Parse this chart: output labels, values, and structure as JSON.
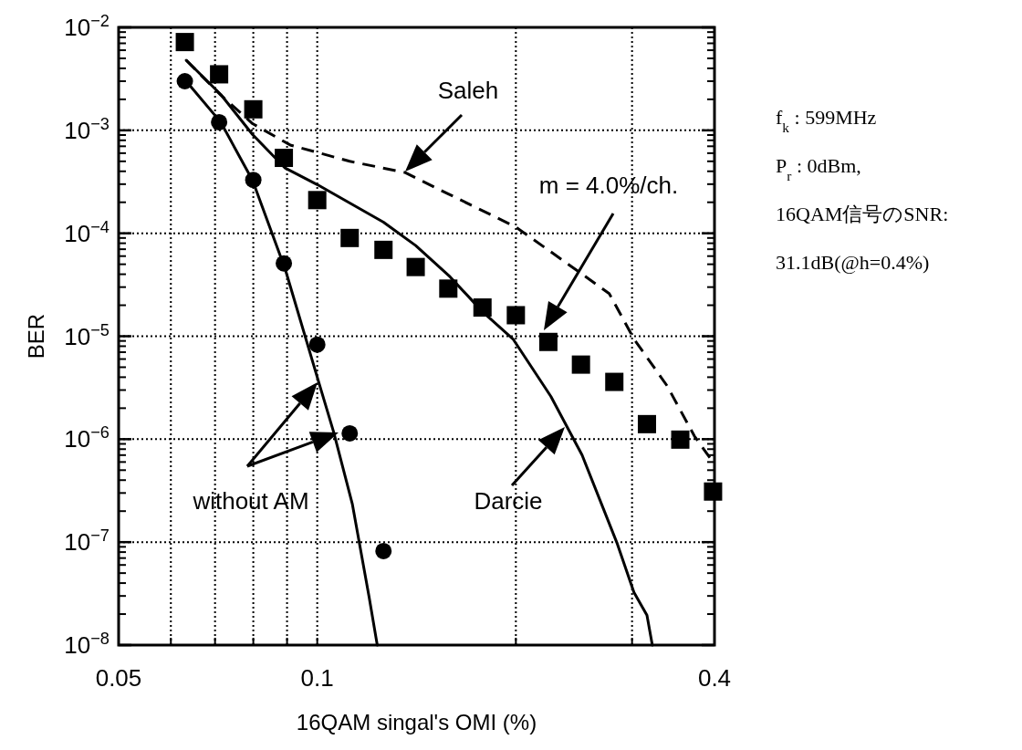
{
  "chart_data": {
    "type": "scatter",
    "xlabel": "16QAM singal's OMI (%)",
    "ylabel": "BER",
    "log": "xy",
    "grid": true,
    "xlim": [
      0.05,
      0.4
    ],
    "xticks": [
      0.05,
      {
        "value": 0.06,
        "label": null
      },
      {
        "value": 0.07,
        "label": null
      },
      {
        "value": 0.08,
        "label": null
      },
      {
        "value": 0.09,
        "label": null
      },
      0.1,
      {
        "value": 0.2,
        "label": null
      },
      {
        "value": 0.3,
        "label": null
      },
      0.4
    ],
    "ylim": [
      1e-08,
      0.01
    ],
    "yticks": [
      {
        "value": 1e-08,
        "label": "10$^{−8}$"
      },
      {
        "value": 1e-07,
        "label": "10$^{−7}$"
      },
      {
        "value": 1e-06,
        "label": "10$^{−6}$"
      },
      {
        "value": 1e-05,
        "label": "10$^{−5}$"
      },
      {
        "value": 0.0001,
        "label": "10$^{−4}$"
      },
      {
        "value": 0.001,
        "label": "10$^{−3}$"
      },
      {
        "value": 0.01,
        "label": "10$^{−2}$"
      }
    ],
    "series": [
      {
        "marker": "square",
        "color": "#000000",
        "x": [
          0.063,
          0.071,
          0.08,
          0.089,
          0.1,
          0.112,
          0.126,
          0.141,
          0.158,
          0.178,
          0.2,
          0.224,
          0.251,
          0.282,
          0.316,
          0.355,
          0.398
        ],
        "values": [
          0.0072,
          0.0035,
          0.0016,
          0.00054,
          0.00021,
          9e-05,
          6.9e-05,
          4.7e-05,
          2.9e-05,
          1.9e-05,
          1.6e-05,
          8.8e-06,
          5.3e-06,
          3.6e-06,
          1.4e-06,
          9.9e-07,
          3.1e-07
        ]
      },
      {
        "marker": "circle",
        "color": "#000000",
        "x": [
          0.063,
          0.071,
          0.08,
          0.089,
          0.1,
          0.112,
          0.126
        ],
        "values": [
          0.003,
          0.0012,
          0.00033,
          5.1e-05,
          8.3e-06,
          1.14e-06,
          8.2e-08
        ]
      },
      {
        "type": "line",
        "line_style": "solid",
        "color": "#000000",
        "x": [
          0.0633,
          0.0714,
          0.0798,
          0.0894,
          0.1,
          0.1059,
          0.113,
          0.1198,
          0.1233
        ],
        "values": [
          0.003,
          0.0012,
          0.000326,
          4.5e-05,
          4e-06,
          1.17e-06,
          2.36e-07,
          2.96e-08,
          1e-08
        ]
      },
      {
        "type": "line",
        "line_style": "solid",
        "color": "#000000",
        "x": [
          0.0633,
          0.0714,
          0.0798,
          0.0894,
          0.1,
          0.126,
          0.141,
          0.159,
          0.178,
          0.198,
          0.226,
          0.252,
          0.285,
          0.302,
          0.316,
          0.322
        ],
        "values": [
          0.0048,
          0.00223,
          0.00091,
          0.00043,
          0.000297,
          0.000128,
          7.6e-05,
          3.77e-05,
          1.73e-05,
          9.4e-06,
          2.6e-06,
          7e-07,
          9.6e-08,
          3.25e-08,
          1.95e-08,
          1e-08
        ]
      },
      {
        "type": "line",
        "line_style": "dashed",
        "color": "#000000",
        "x": [
          0.0633,
          0.0714,
          0.0798,
          0.091,
          0.112,
          0.1357,
          0.157,
          0.1995,
          0.226,
          0.277,
          0.302,
          0.339,
          0.373,
          0.397
        ],
        "values": [
          0.0048,
          0.0022,
          0.00116,
          0.00072,
          0.0005,
          0.00039,
          0.000246,
          0.000116,
          6.6e-05,
          2.6e-05,
          9.4e-06,
          3.3e-06,
          1.07e-06,
          6.1e-07
        ]
      }
    ],
    "annotations": [
      "Saleh",
      "m = 4.0%/ch.",
      "Darcie",
      "without AM",
      "f$_{k}$ : 599MHz",
      "P$_{r}$ : 0dBm,",
      "16QAM信号のSNR:",
      "31.1dB(@h=0.4%)"
    ]
  }
}
